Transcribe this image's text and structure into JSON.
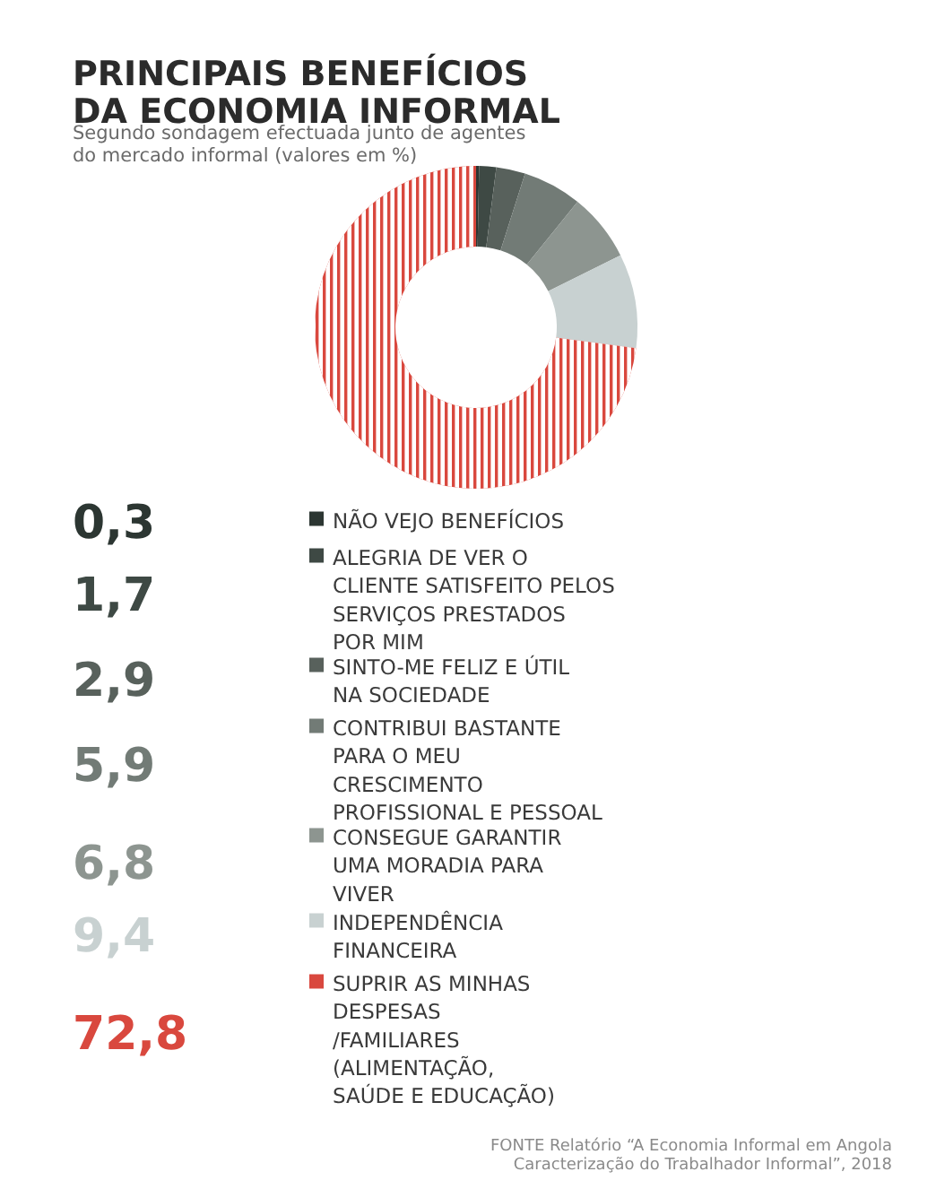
{
  "chart_data": {
    "type": "donut",
    "title": "PRINCIPAIS BENEFÍCIOS\nDA ECONOMIA INFORMAL",
    "subtitle": "Segundo sondagem efectuada junto de agentes\ndo mercado informal (valores em %)",
    "categories": [
      "NÃO VEJO BENEFÍCIOS",
      "ALEGRIA DE VER O\nCLIENTE SATISFEITO PELOS\nSERVIÇOS PRESTADOS\nPOR MIM",
      "SINTO-ME FELIZ E ÚTIL\nNA SOCIEDADE",
      "CONTRIBUI BASTANTE\nPARA O MEU\nCRESCIMENTO\nPROFISSIONAL E PESSOAL",
      "CONSEGUE GARANTIR\nUMA MORADIA PARA\nVIVER",
      "INDEPENDÊNCIA\nFINANCEIRA",
      "SUPRIR AS MINHAS\nDESPESAS\n/FAMILIARES\n(ALIMENTAÇÃO,\nSAÚDE E EDUCAÇÃO)"
    ],
    "values": [
      0.3,
      1.7,
      2.9,
      5.9,
      6.8,
      9.4,
      72.8
    ],
    "value_labels": [
      "0,3",
      "1,7",
      "2,9",
      "5,9",
      "6,8",
      "9,4",
      "72,8"
    ],
    "colors": [
      "#2c3632",
      "#3e4944",
      "#58615c",
      "#727b76",
      "#8d9590",
      "#c8d1d1",
      "#d9483e"
    ],
    "legend": "bottom",
    "annotations": [
      "FONTE Relatório “A Economia Informal em Angola\nCaracterização do Trabalhador Informal”, 2018"
    ]
  }
}
